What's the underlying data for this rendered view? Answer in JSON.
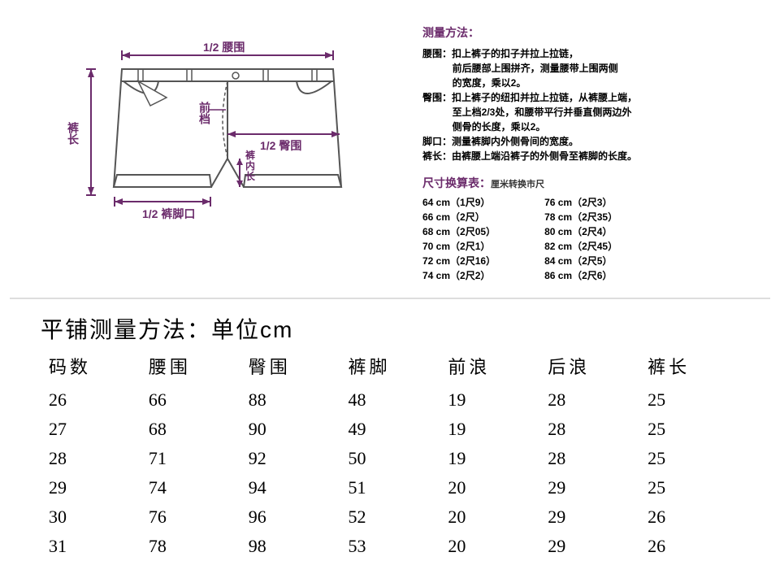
{
  "diagram": {
    "labels": {
      "waist_half": "1/2 腰围",
      "hip_half": "1/2 臀围",
      "leg_half": "1/2 裤脚口",
      "length": "裤长",
      "front_rise": "前档",
      "inseam": "裤内长"
    },
    "colors": {
      "accent": "#6b2b6b",
      "stroke": "#555555",
      "fill": "#ffffff"
    }
  },
  "measure_method": {
    "title": "测量方法：",
    "lines": [
      "腰围：扣上裤子的扣子并拉上拉链，",
      "           前后腰部上围拼齐，测量腰带上围两侧",
      "           的宽度，乘以2。",
      "臀围：扣上裤子的纽扣并拉上拉链，从裤腰上端，",
      "           至上档2/3处，和腰带平行并垂直侧两边外",
      "           侧骨的长度，乘以2。",
      "脚口：测量裤脚内外侧骨间的宽度。",
      "裤长：由裤腰上端沿裤子的外侧骨至裤脚的长度。"
    ]
  },
  "conversion": {
    "title": "尺寸换算表：",
    "subtitle": "厘米转换市尺",
    "left": [
      "64 cm（1尺9）",
      "66 cm（2尺）",
      "68 cm（2尺05）",
      "70 cm（2尺1）",
      "72 cm（2尺16）",
      "74 cm（2尺2）"
    ],
    "right": [
      "76 cm（2尺3）",
      "78 cm（2尺35）",
      "80 cm（2尺4）",
      "82 cm（2尺45）",
      "84 cm（2尺5）",
      "86 cm（2尺6）"
    ]
  },
  "table": {
    "title": "平铺测量方法：单位cm",
    "columns": [
      "码数",
      "腰围",
      "臀围",
      "裤脚",
      "前浪",
      "后浪",
      "裤长"
    ],
    "rows": [
      [
        "26",
        "66",
        "88",
        "48",
        "19",
        "28",
        "25"
      ],
      [
        "27",
        "68",
        "90",
        "49",
        "19",
        "28",
        "25"
      ],
      [
        "28",
        "71",
        "92",
        "50",
        "19",
        "28",
        "25"
      ],
      [
        "29",
        "74",
        "94",
        "51",
        "20",
        "29",
        "25"
      ],
      [
        "30",
        "76",
        "96",
        "52",
        "20",
        "29",
        "26"
      ],
      [
        "31",
        "78",
        "98",
        "53",
        "20",
        "29",
        "26"
      ]
    ]
  }
}
